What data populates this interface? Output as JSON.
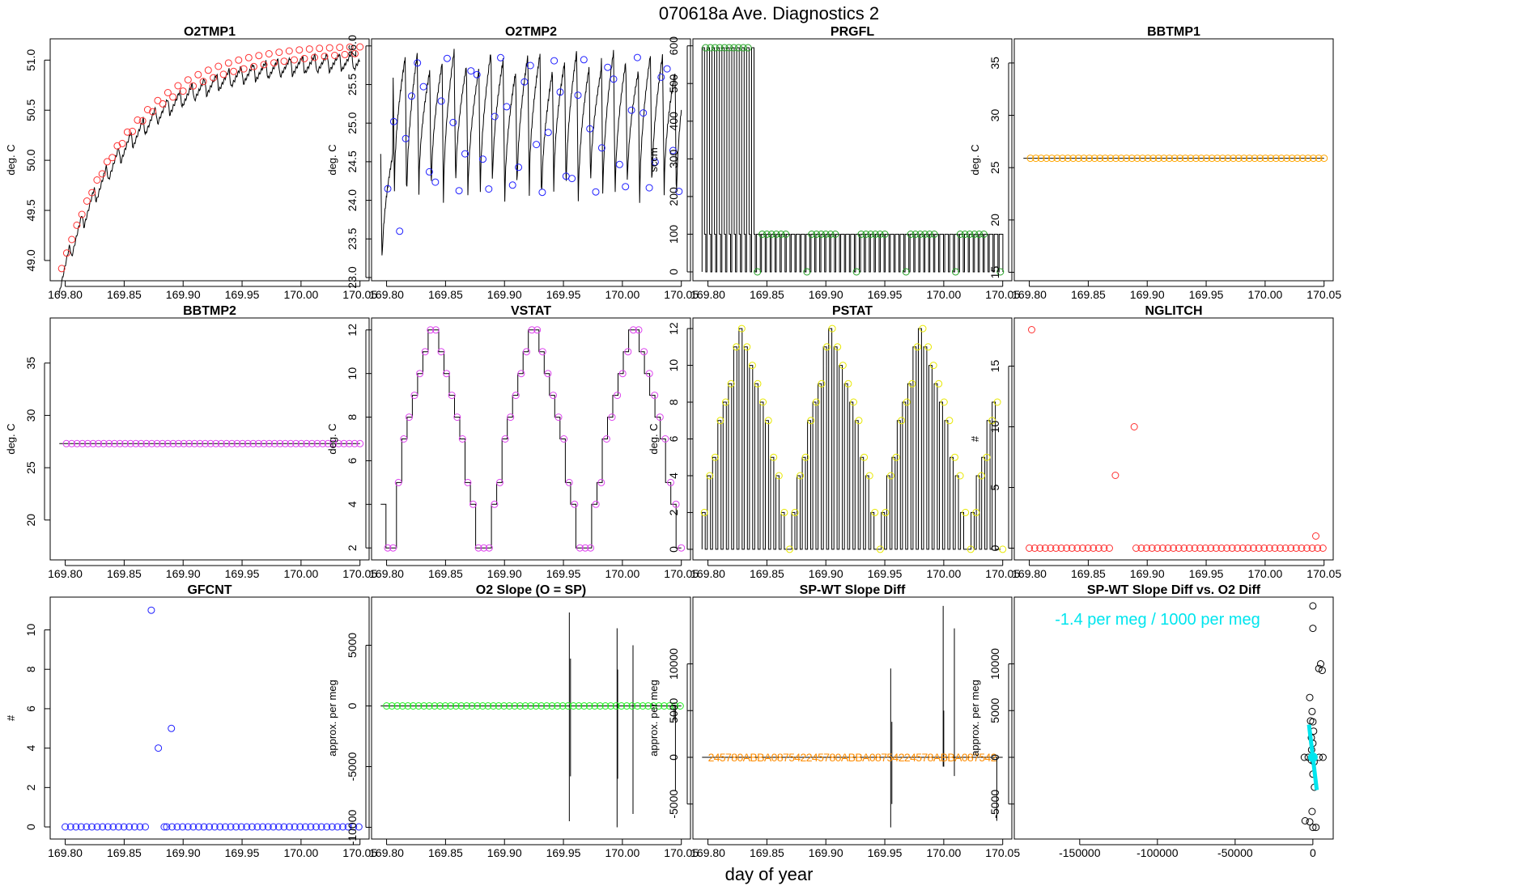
{
  "page": {
    "title": "070618a    Ave. Diagnostics 2",
    "xlabel": "day of year"
  },
  "colors": {
    "ink": "#000000",
    "red": "#ff3030",
    "blue": "#2020ff",
    "green": "#20a020",
    "orange": "#ffa500",
    "violet": "#dd44ee",
    "yellow": "#e8e800",
    "brightgreen": "#22ee22",
    "darkorange": "#ff8c00",
    "cyan": "#00e5ee"
  },
  "chart_data": [
    {
      "id": "o2tmp1",
      "type": "line",
      "title": "O2TMP1",
      "ylabel": "deg. C",
      "xlim": [
        169.79,
        170.055
      ],
      "ylim": [
        48.83,
        51.18
      ],
      "xticks": [
        169.8,
        169.85,
        169.9,
        169.95,
        170.0,
        170.05
      ],
      "xtick_labels": [
        "169.80",
        "169.85",
        "169.90",
        "169.95",
        "170.00",
        "170.05"
      ],
      "yticks": [
        49.0,
        49.5,
        50.0,
        50.5,
        51.0
      ],
      "ytick_labels": [
        "49.0",
        "49.5",
        "50.0",
        "50.5",
        "51.0"
      ],
      "line": {
        "kind": "sawtooth",
        "x0": 169.795,
        "x1": 170.05,
        "shape": "rise",
        "y0": 48.85,
        "y1": 51.08,
        "k": 4.2,
        "amp": 0.18,
        "period": 0.0104
      },
      "points": {
        "color": "red",
        "count": 60,
        "x0": 169.797,
        "x1": 170.05,
        "shape": "rise",
        "y0": 48.92,
        "y1": 51.1,
        "k": 4.2,
        "jitter": 0.05
      }
    },
    {
      "id": "o2tmp2",
      "type": "line",
      "title": "O2TMP2",
      "ylabel": "deg. C",
      "xlim": [
        169.79,
        170.055
      ],
      "ylim": [
        23.0,
        26.05
      ],
      "xticks": [
        169.8,
        169.85,
        169.9,
        169.95,
        170.0,
        170.05
      ],
      "xtick_labels": [
        "169.80",
        "169.85",
        "169.90",
        "169.95",
        "170.00",
        "170.05"
      ],
      "yticks": [
        23.0,
        23.5,
        24.0,
        24.5,
        25.0,
        25.5,
        26.0
      ],
      "ytick_labels": [
        "23.0",
        "23.5",
        "24.0",
        "24.5",
        "25.0",
        "25.5",
        "26.0"
      ],
      "line": {
        "kind": "spiky",
        "x0": 169.795,
        "x1": 170.05,
        "top": 25.8,
        "bottom": 24.0,
        "first_bottom": 23.1,
        "period": 0.0104
      },
      "points": {
        "color": "blue",
        "count": 50,
        "x0": 169.801,
        "x1": 170.048,
        "lo": 24.1,
        "hi": 25.85,
        "first_values": [
          24.15,
          25.02,
          23.6,
          24.8,
          25.35
        ]
      }
    },
    {
      "id": "prgfl",
      "type": "step",
      "title": "PRGFL",
      "ylabel": "sccm",
      "xlim": [
        169.79,
        170.055
      ],
      "ylim": [
        -15,
        610
      ],
      "xticks": [
        169.8,
        169.85,
        169.9,
        169.95,
        170.0,
        170.05
      ],
      "xtick_labels": [
        "169.80",
        "169.85",
        "169.90",
        "169.95",
        "170.00",
        "170.05"
      ],
      "yticks": [
        0,
        100,
        200,
        300,
        400,
        500,
        600
      ],
      "ytick_labels": [
        "0",
        "100",
        "200",
        "300",
        "400",
        "500",
        "600"
      ],
      "line": {
        "kind": "pulses",
        "x0": 169.795,
        "x1": 170.05,
        "period": 0.0042,
        "phases": [
          {
            "until": 169.838,
            "top": 595,
            "mid": 100
          },
          {
            "until": 170.05,
            "top": 100,
            "mid": 100
          }
        ]
      },
      "points": {
        "color": "green",
        "high_x": [
          169.798,
          169.802,
          169.806,
          169.81,
          169.814,
          169.818,
          169.822,
          169.826,
          169.83,
          169.834
        ],
        "high_y": 595,
        "groups": [
          [
            169.846,
            169.85,
            169.854,
            169.858,
            169.862,
            169.866
          ],
          [
            169.888,
            169.892,
            169.896,
            169.9,
            169.904,
            169.908
          ],
          [
            169.93,
            169.934,
            169.938,
            169.942,
            169.946,
            169.95
          ],
          [
            169.972,
            169.976,
            169.98,
            169.984,
            169.988,
            169.992
          ],
          [
            170.014,
            170.018,
            170.022,
            170.026,
            170.03,
            170.034
          ]
        ],
        "group_y": 100,
        "zero_x": [
          169.842,
          169.884,
          169.926,
          169.968,
          170.01,
          170.048
        ]
      }
    },
    {
      "id": "bbtmp1",
      "type": "line",
      "title": "BBTMP1",
      "ylabel": "deg. C",
      "xlim": [
        169.79,
        170.055
      ],
      "ylim": [
        14.5,
        37.0
      ],
      "xticks": [
        169.8,
        169.85,
        169.9,
        169.95,
        170.0,
        170.05
      ],
      "xtick_labels": [
        "169.80",
        "169.85",
        "169.90",
        "169.95",
        "170.00",
        "170.05"
      ],
      "yticks": [
        15,
        20,
        25,
        30,
        35
      ],
      "ytick_labels": [
        "15",
        "20",
        "25",
        "30",
        "35"
      ],
      "line": {
        "kind": "flat",
        "x0": 169.795,
        "x1": 170.05,
        "y": 25.9
      },
      "points": {
        "color": "orange",
        "count": 56,
        "x0": 169.801,
        "x1": 170.05,
        "y": 25.9
      }
    },
    {
      "id": "bbtmp2",
      "type": "line",
      "title": "BBTMP2",
      "ylabel": "deg. C",
      "xlim": [
        169.79,
        170.055
      ],
      "ylim": [
        16.5,
        39.0
      ],
      "xticks": [
        169.8,
        169.85,
        169.9,
        169.95,
        170.0,
        170.05
      ],
      "xtick_labels": [
        "169.80",
        "169.85",
        "169.90",
        "169.95",
        "170.00",
        "170.05"
      ],
      "yticks": [
        20,
        25,
        30,
        35
      ],
      "ytick_labels": [
        "20",
        "25",
        "30",
        "35"
      ],
      "line": {
        "kind": "flat",
        "x0": 169.795,
        "x1": 170.05,
        "y": 27.3
      },
      "points": {
        "color": "violet",
        "count": 56,
        "x0": 169.801,
        "x1": 170.05,
        "y": 27.3
      }
    },
    {
      "id": "vstat",
      "type": "step",
      "title": "VSTAT",
      "ylabel": "deg. C",
      "xlim": [
        169.79,
        170.055
      ],
      "ylim": [
        1.6,
        12.4
      ],
      "xticks": [
        169.8,
        169.85,
        169.9,
        169.95,
        170.0,
        170.05
      ],
      "xtick_labels": [
        "169.80",
        "169.85",
        "169.90",
        "169.95",
        "170.00",
        "170.05"
      ],
      "yticks": [
        2,
        4,
        6,
        8,
        10,
        12
      ],
      "ytick_labels": [
        "2",
        "4",
        "6",
        "8",
        "10",
        "12"
      ],
      "line": {
        "kind": "steps",
        "x0": 169.795,
        "x1": 170.05,
        "values": [
          4,
          2,
          2,
          5,
          7,
          8,
          9,
          10,
          11,
          12,
          12,
          11,
          10,
          9,
          8,
          7,
          5,
          4,
          2,
          2,
          2,
          4,
          5,
          7,
          8,
          9,
          10,
          11,
          12,
          12,
          11,
          10,
          9,
          8,
          7,
          5,
          4,
          2,
          2,
          2,
          4,
          5,
          7,
          8,
          9,
          10,
          11,
          12,
          12,
          11,
          10,
          9,
          8,
          7,
          5,
          4,
          2
        ]
      },
      "points": {
        "color": "violet",
        "x0": 169.801,
        "x1": 170.05,
        "values": [
          2,
          2,
          5,
          7,
          8,
          9,
          10,
          11,
          12,
          12,
          11,
          10,
          9,
          8,
          7,
          5,
          4,
          2,
          2,
          2,
          4,
          5,
          7,
          8,
          9,
          10,
          11,
          12,
          12,
          11,
          10,
          9,
          8,
          7,
          5,
          4,
          2,
          2,
          2,
          4,
          5,
          7,
          8,
          9,
          10,
          11,
          12,
          12,
          11,
          10,
          9,
          8,
          7,
          5,
          4,
          2
        ]
      }
    },
    {
      "id": "pstat",
      "type": "step",
      "title": "PSTAT",
      "ylabel": "deg. C",
      "xlim": [
        169.79,
        170.055
      ],
      "ylim": [
        -0.4,
        12.4
      ],
      "xticks": [
        169.8,
        169.85,
        169.9,
        169.95,
        170.0,
        170.05
      ],
      "xtick_labels": [
        "169.80",
        "169.85",
        "169.90",
        "169.95",
        "170.00",
        "170.05"
      ],
      "yticks": [
        0,
        2,
        4,
        6,
        8,
        10,
        12
      ],
      "ytick_labels": [
        "0",
        "2",
        "4",
        "6",
        "8",
        "10",
        "12"
      ],
      "line": {
        "kind": "pulse_steps",
        "x0": 169.795,
        "x1": 170.05,
        "values": [
          2,
          4,
          5,
          7,
          8,
          9,
          11,
          12,
          11,
          10,
          9,
          8,
          7,
          5,
          4,
          2,
          0,
          2,
          4,
          5,
          7,
          8,
          9,
          11,
          12,
          11,
          10,
          9,
          8,
          7,
          5,
          4,
          2,
          0,
          2,
          4,
          5,
          7,
          8,
          9,
          11,
          12,
          11,
          10,
          9,
          8,
          7,
          5,
          4,
          2,
          0,
          2,
          4,
          5,
          7,
          8,
          0
        ]
      },
      "points": {
        "color": "yellow",
        "x0": 169.797,
        "x1": 170.05,
        "values": [
          2,
          4,
          5,
          7,
          8,
          9,
          11,
          12,
          11,
          10,
          9,
          8,
          7,
          5,
          4,
          2,
          0,
          2,
          4,
          5,
          7,
          8,
          9,
          11,
          12,
          11,
          10,
          9,
          8,
          7,
          5,
          4,
          2,
          0,
          2,
          4,
          5,
          7,
          8,
          9,
          11,
          12,
          11,
          10,
          9,
          8,
          7,
          5,
          4,
          2,
          0,
          2,
          4,
          5,
          7,
          8,
          0
        ]
      }
    },
    {
      "id": "nglitch",
      "type": "scatter",
      "title": "NGLITCH",
      "ylabel": "#",
      "xlim": [
        169.79,
        170.055
      ],
      "ylim": [
        -0.7,
        18.7
      ],
      "xticks": [
        169.8,
        169.85,
        169.9,
        169.95,
        170.0,
        170.05
      ],
      "xtick_labels": [
        "169.80",
        "169.85",
        "169.90",
        "169.95",
        "170.00",
        "170.05"
      ],
      "yticks": [
        0,
        5,
        10,
        15
      ],
      "ytick_labels": [
        "0",
        "5",
        "10",
        "15"
      ],
      "points": {
        "color": "red",
        "count": 56,
        "x0": 169.8,
        "x1": 170.049,
        "y": 0,
        "skip": [
          16,
          17,
          18,
          19
        ],
        "special": [
          [
            169.802,
            18
          ],
          [
            169.873,
            6
          ],
          [
            169.889,
            10
          ],
          [
            170.043,
            1
          ]
        ]
      }
    },
    {
      "id": "gfcnt",
      "type": "scatter",
      "title": "GFCNT",
      "ylabel": "#",
      "xlim": [
        169.79,
        170.055
      ],
      "ylim": [
        -0.45,
        11.5
      ],
      "xticks": [
        169.8,
        169.85,
        169.9,
        169.95,
        170.0,
        170.05
      ],
      "xtick_labels": [
        "169.80",
        "169.85",
        "169.90",
        "169.95",
        "170.00",
        "170.05"
      ],
      "yticks": [
        0,
        2,
        4,
        6,
        8,
        10
      ],
      "ytick_labels": [
        "0",
        "2",
        "4",
        "6",
        "8",
        "10"
      ],
      "points": {
        "color": "blue",
        "count": 56,
        "x0": 169.8,
        "x1": 170.049,
        "y": 0,
        "skip": [
          16,
          17,
          18
        ],
        "special": [
          [
            169.873,
            11
          ],
          [
            169.879,
            4
          ],
          [
            169.884,
            0
          ],
          [
            169.89,
            5
          ]
        ]
      }
    },
    {
      "id": "o2slope",
      "type": "scatter",
      "title": "O2 Slope (O = SP)",
      "ylabel": "approx. per meg",
      "xlim": [
        169.79,
        170.055
      ],
      "ylim": [
        -10700,
        8700
      ],
      "xticks": [
        169.8,
        169.85,
        169.9,
        169.95,
        170.0,
        170.05
      ],
      "xtick_labels": [
        "169.80",
        "169.85",
        "169.90",
        "169.95",
        "170.00",
        "170.05"
      ],
      "yticks": [
        -10000,
        -5000,
        0,
        5000
      ],
      "ytick_labels": [
        "-10000",
        "-5000",
        "0",
        "5000"
      ],
      "line": {
        "kind": "flat",
        "x0": 169.795,
        "x1": 170.05,
        "y": 0
      },
      "spikes": [
        [
          169.955,
          -9500,
          7700
        ],
        [
          169.956,
          -5800,
          3900
        ],
        [
          169.9955,
          -10000,
          6400
        ],
        [
          169.996,
          -6000,
          3000
        ],
        [
          170.009,
          -8900,
          5000
        ],
        [
          170.045,
          -7000,
          0
        ],
        [
          170.044,
          -1200,
          0
        ]
      ],
      "points": {
        "color": "brightgreen",
        "count": 56,
        "x0": 169.8,
        "x1": 170.049,
        "y": 0
      }
    },
    {
      "id": "spwtdiff",
      "type": "scatter",
      "title": "SP-WT Slope Diff",
      "ylabel": "approx. per meg",
      "xlim": [
        169.79,
        170.055
      ],
      "ylim": [
        -8400,
        16800
      ],
      "xticks": [
        169.8,
        169.85,
        169.9,
        169.95,
        170.0,
        170.05
      ],
      "xtick_labels": [
        "169.80",
        "169.85",
        "169.90",
        "169.95",
        "170.00",
        "170.05"
      ],
      "yticks": [
        -5000,
        0,
        5000,
        10000
      ],
      "ytick_labels": [
        "-5000",
        "0",
        "5000",
        "10000"
      ],
      "line": {
        "kind": "flat",
        "x0": 169.795,
        "x1": 170.05,
        "y": 0
      },
      "spikes": [
        [
          169.955,
          -7500,
          9500
        ],
        [
          169.956,
          -5000,
          3800
        ],
        [
          169.9995,
          -1000,
          16200
        ],
        [
          170.0,
          -1000,
          5000
        ],
        [
          170.009,
          -2000,
          13800
        ],
        [
          170.045,
          -6800,
          0
        ]
      ],
      "label_run": {
        "text": "245780ABBA087542245780ABBA08754224578ABBA087542",
        "color": "darkorange",
        "x0": 169.8,
        "y": 0
      }
    },
    {
      "id": "slopediff_vs_o2",
      "type": "scatter",
      "title": "SP-WT Slope Diff vs. O2 Diff",
      "ylabel": "approx. per meg",
      "xlim": [
        -190000,
        11000
      ],
      "ylim": [
        -8400,
        16800
      ],
      "xticks": [
        -150000,
        -100000,
        -50000,
        0
      ],
      "xtick_labels": [
        "-150000",
        "-100000",
        "-50000",
        "0"
      ],
      "yticks": [
        -5000,
        0,
        5000,
        10000
      ],
      "ytick_labels": [
        "-5000",
        "0",
        "5000",
        "10000"
      ],
      "annotation": {
        "text": "-1.4 per meg / 1000 per meg",
        "color": "cyan"
      },
      "points": {
        "color": "black",
        "xy": [
          [
            0,
            16200
          ],
          [
            0,
            13800
          ],
          [
            5000,
            10000
          ],
          [
            6000,
            9300
          ],
          [
            3800,
            9500
          ],
          [
            -2000,
            6400
          ],
          [
            -500,
            4900
          ],
          [
            -1500,
            3900
          ],
          [
            0,
            3800
          ],
          [
            500,
            2800
          ],
          [
            -1000,
            2100
          ],
          [
            0,
            1500
          ],
          [
            -3000,
            0
          ],
          [
            -5500,
            0
          ],
          [
            -1000,
            -300
          ],
          [
            4000,
            0
          ],
          [
            6500,
            0
          ],
          [
            0,
            -1800
          ],
          [
            1000,
            -3200
          ],
          [
            -500,
            -5800
          ],
          [
            -2000,
            -6900
          ],
          [
            -5000,
            -6800
          ],
          [
            0,
            -7500
          ],
          [
            2000,
            -7500
          ],
          [
            -800,
            800
          ],
          [
            800,
            -500
          ]
        ]
      },
      "fit": {
        "color": "cyan",
        "x0": -2500,
        "x1": 2500,
        "slope": -1.4
      }
    }
  ]
}
